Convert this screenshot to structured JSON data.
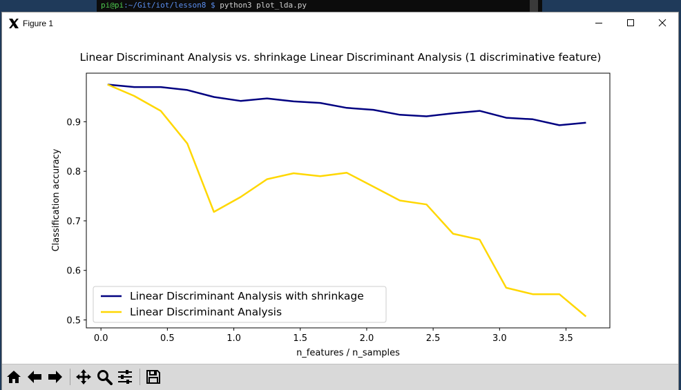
{
  "terminal": {
    "user": "pi@pi",
    "path": ":~/Git/iot/lesson8 $",
    "command": " python3 plot_lda.py"
  },
  "window": {
    "title": "Figure 1",
    "icons": {
      "app": "x-window-icon",
      "minimize": "minimize-icon",
      "maximize": "maximize-icon",
      "close": "close-icon"
    }
  },
  "chart_data": {
    "type": "line",
    "title": "Linear Discriminant Analysis vs. shrinkage Linear Discriminant Analysis (1 discriminative feature)",
    "xlabel": "n_features / n_samples",
    "ylabel": "Classification accuracy",
    "xlim": [
      -0.11,
      3.83
    ],
    "ylim": [
      0.484,
      0.998
    ],
    "xticks": [
      0.0,
      0.5,
      1.0,
      1.5,
      2.0,
      2.5,
      3.0,
      3.5
    ],
    "xtick_labels": [
      "0.0",
      "0.5",
      "1.0",
      "1.5",
      "2.0",
      "2.5",
      "3.0",
      "3.5"
    ],
    "yticks": [
      0.5,
      0.6,
      0.7,
      0.8,
      0.9
    ],
    "ytick_labels": [
      "0.5",
      "0.6",
      "0.7",
      "0.8",
      "0.9"
    ],
    "grid": false,
    "legend_position": "lower-left",
    "x": [
      0.05,
      0.25,
      0.45,
      0.65,
      0.85,
      1.05,
      1.25,
      1.45,
      1.65,
      1.85,
      2.05,
      2.25,
      2.45,
      2.65,
      2.85,
      3.05,
      3.25,
      3.45,
      3.65
    ],
    "series": [
      {
        "name": "Linear Discriminant Analysis with shrinkage",
        "color": "#000080",
        "values": [
          0.975,
          0.97,
          0.97,
          0.964,
          0.95,
          0.942,
          0.947,
          0.941,
          0.938,
          0.928,
          0.924,
          0.914,
          0.911,
          0.917,
          0.922,
          0.908,
          0.905,
          0.893,
          0.898
        ]
      },
      {
        "name": "Linear Discriminant Analysis",
        "color": "#ffd700",
        "values": [
          0.975,
          0.952,
          0.922,
          0.856,
          0.718,
          0.748,
          0.784,
          0.796,
          0.79,
          0.797,
          0.769,
          0.741,
          0.733,
          0.674,
          0.662,
          0.565,
          0.552,
          0.552,
          0.507
        ]
      }
    ]
  },
  "toolbar": {
    "buttons": [
      {
        "name": "home-button",
        "icon": "home-icon"
      },
      {
        "name": "back-button",
        "icon": "arrow-left-icon"
      },
      {
        "name": "forward-button",
        "icon": "arrow-right-icon"
      },
      {
        "name": "pan-button",
        "icon": "move-icon"
      },
      {
        "name": "zoom-button",
        "icon": "magnifier-icon"
      },
      {
        "name": "configure-subplots-button",
        "icon": "sliders-icon"
      },
      {
        "name": "save-button",
        "icon": "floppy-disk-icon"
      }
    ]
  }
}
